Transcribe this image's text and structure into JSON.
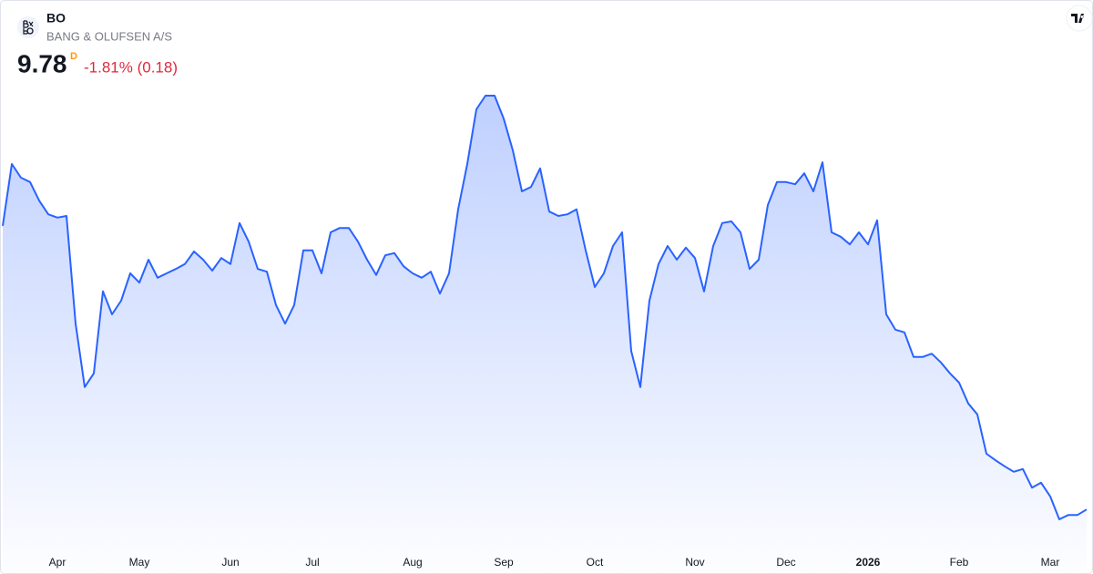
{
  "chart_data": {
    "type": "area",
    "symbol": "BO",
    "title": "BANG & OLUFSEN A/S",
    "price": 9.78,
    "interval": "D",
    "change": "-1.81% (0.18)",
    "color": "#2962ff",
    "ylim": [
      9.1,
      18.1
    ],
    "categories": [
      null,
      null,
      null,
      null,
      null,
      null,
      "Apr",
      null,
      null,
      null,
      null,
      null,
      null,
      null,
      null,
      "May",
      null,
      null,
      null,
      null,
      null,
      null,
      null,
      null,
      null,
      "Jun",
      null,
      null,
      null,
      null,
      null,
      null,
      null,
      null,
      "Jul",
      null,
      null,
      null,
      null,
      null,
      null,
      null,
      null,
      null,
      null,
      "Aug",
      null,
      null,
      null,
      null,
      null,
      null,
      null,
      null,
      null,
      "Sep",
      null,
      null,
      null,
      null,
      null,
      null,
      null,
      null,
      null,
      "Oct",
      null,
      null,
      null,
      null,
      null,
      null,
      null,
      null,
      null,
      null,
      "Nov",
      null,
      null,
      null,
      null,
      null,
      null,
      null,
      null,
      null,
      "Dec",
      null,
      null,
      null,
      null,
      null,
      null,
      null,
      null,
      "2026",
      null,
      null,
      null,
      null,
      null,
      null,
      null,
      null,
      null,
      "Feb",
      null,
      null,
      null,
      null,
      null,
      null,
      null,
      null,
      null,
      "Mar",
      null,
      null,
      null,
      null
    ],
    "values": [
      14.97,
      16.1,
      15.85,
      15.77,
      15.43,
      15.18,
      15.12,
      15.15,
      13.18,
      12.02,
      12.27,
      13.77,
      13.35,
      13.6,
      14.1,
      13.93,
      14.35,
      14.02,
      14.1,
      14.18,
      14.27,
      14.5,
      14.35,
      14.15,
      14.38,
      14.27,
      15.02,
      14.68,
      14.18,
      14.13,
      13.52,
      13.18,
      13.52,
      14.52,
      14.52,
      14.1,
      14.85,
      14.93,
      14.93,
      14.68,
      14.35,
      14.07,
      14.43,
      14.47,
      14.23,
      14.1,
      14.02,
      14.13,
      13.73,
      14.1,
      15.27,
      16.1,
      17.1,
      17.35,
      17.35,
      16.93,
      16.35,
      15.6,
      15.68,
      16.02,
      15.23,
      15.15,
      15.18,
      15.27,
      14.52,
      13.85,
      14.1,
      14.6,
      14.85,
      12.68,
      12.02,
      13.6,
      14.27,
      14.6,
      14.35,
      14.57,
      14.38,
      13.77,
      14.6,
      15.02,
      15.05,
      14.85,
      14.18,
      14.35,
      15.35,
      15.77,
      15.77,
      15.73,
      15.93,
      15.6,
      16.13,
      14.85,
      14.77,
      14.63,
      14.85,
      14.63,
      15.07,
      13.35,
      13.07,
      13.02,
      12.57,
      12.57,
      12.63,
      12.47,
      12.27,
      12.1,
      11.72,
      11.52,
      10.8,
      10.68,
      10.57,
      10.47,
      10.52,
      10.18,
      10.27,
      10.02,
      9.6,
      9.68,
      9.68,
      9.78
    ]
  }
}
